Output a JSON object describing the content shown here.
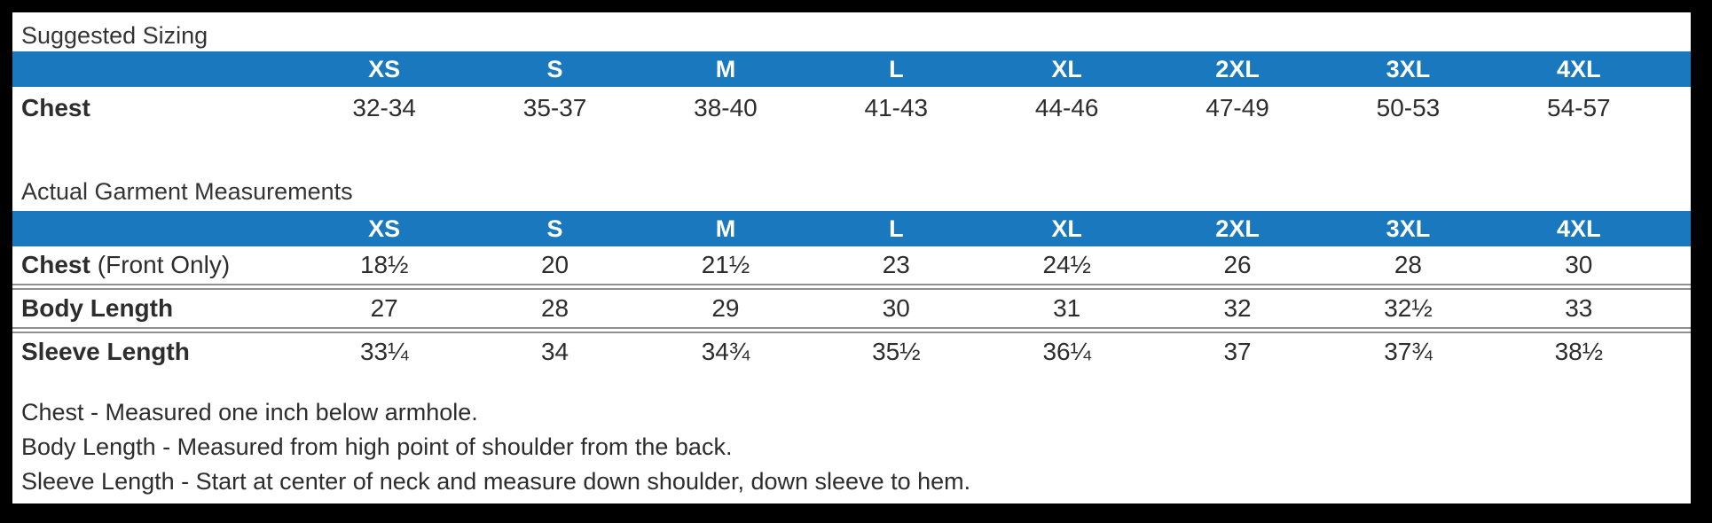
{
  "colors": {
    "header_blue": "#1a78be",
    "header_text": "#ffffff",
    "body_text": "#2d2d2d",
    "divider_gray": "#8f8f8f",
    "frame_black": "#000000",
    "panel_white": "#ffffff"
  },
  "suggested_sizing": {
    "title": "Suggested Sizing",
    "sizes": [
      "XS",
      "S",
      "M",
      "L",
      "XL",
      "2XL",
      "3XL",
      "4XL"
    ],
    "rows": [
      {
        "label": "Chest",
        "label_suffix": "",
        "values": [
          "32-34",
          "35-37",
          "38-40",
          "41-43",
          "44-46",
          "47-49",
          "50-53",
          "54-57"
        ]
      }
    ]
  },
  "garment_measurements": {
    "title": "Actual Garment Measurements",
    "sizes": [
      "XS",
      "S",
      "M",
      "L",
      "XL",
      "2XL",
      "3XL",
      "4XL"
    ],
    "rows": [
      {
        "label": "Chest",
        "label_suffix": "(Front Only)",
        "values": [
          "18½",
          "20",
          "21½",
          "23",
          "24½",
          "26",
          "28",
          "30"
        ]
      },
      {
        "label": "Body Length",
        "label_suffix": "",
        "values": [
          "27",
          "28",
          "29",
          "30",
          "31",
          "32",
          "32½",
          "33"
        ]
      },
      {
        "label": "Sleeve Length",
        "label_suffix": "",
        "values": [
          "33¼",
          "34",
          "34¾",
          "35½",
          "36¼",
          "37",
          "37¾",
          "38½"
        ]
      }
    ]
  },
  "notes": [
    "Chest - Measured one inch below armhole.",
    "Body Length - Measured from high point of shoulder from the back.",
    "Sleeve Length - Start at center of neck and measure down shoulder, down sleeve to hem."
  ]
}
